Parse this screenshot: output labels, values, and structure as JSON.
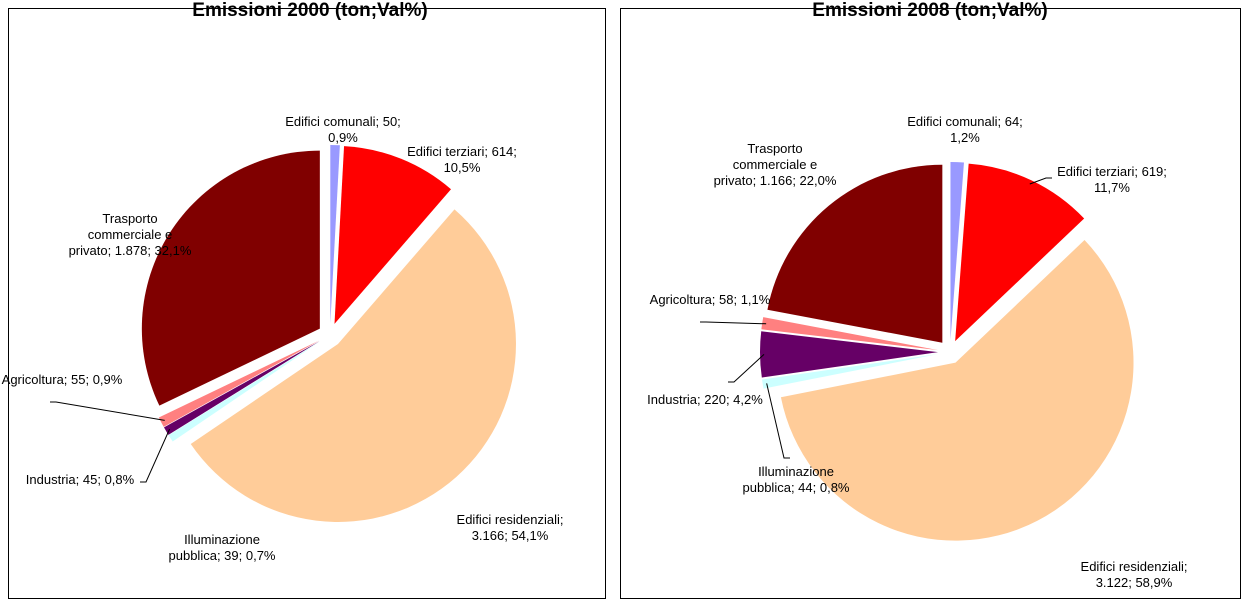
{
  "chart_data": [
    {
      "type": "pie",
      "title": "Emissioni 2000 (ton;Val%)",
      "categories": [
        "Edifici comunali",
        "Edifici terziari",
        "Edifici residenziali",
        "Illuminazione pubblica",
        "Industria",
        "Agricoltura",
        "Trasporto commerciale e privato"
      ],
      "values": [
        50,
        614,
        3166,
        39,
        45,
        55,
        1878
      ],
      "percents": [
        0.9,
        10.5,
        54.1,
        0.7,
        0.8,
        0.9,
        32.1
      ],
      "value_labels": [
        "Edifici comunali; 50; 0,9%",
        "Edifici terziari; 614; 10,5%",
        "Edifici residenziali; 3.166; 54,1%",
        "Illuminazione pubblica; 39; 0,7%",
        "Industria; 45; 0,8%",
        "Agricoltura; 55; 0,9%",
        "Trasporto commerciale e privato; 1.878; 32,1%"
      ],
      "colors": [
        "#9999ff",
        "#ff0000",
        "#ffcc99",
        "#ccffff",
        "#660066",
        "#ff8080",
        "#800000"
      ]
    },
    {
      "type": "pie",
      "title": "Emissioni 2008 (ton;Val%)",
      "categories": [
        "Edifici comunali",
        "Edifici terziari",
        "Edifici residenziali",
        "Illuminazione pubblica",
        "Industria",
        "Agricoltura",
        "Trasporto commerciale e privato"
      ],
      "values": [
        64,
        619,
        3122,
        44,
        220,
        58,
        1166
      ],
      "percents": [
        1.2,
        11.7,
        58.9,
        0.8,
        4.2,
        1.1,
        22.0
      ],
      "value_labels": [
        "Edifici comunali; 64; 1,2%",
        "Edifici terziari; 619; 11,7%",
        "Edifici residenziali; 3.122; 58,9%",
        "Illuminazione pubblica; 44; 0,8%",
        "Industria; 220; 4,2%",
        "Agricoltura; 58; 1,1%",
        "Trasporto commerciale e privato; 1.166; 22,0%"
      ],
      "colors": [
        "#9999ff",
        "#ff0000",
        "#ffcc99",
        "#ccffff",
        "#660066",
        "#ff8080",
        "#800000"
      ]
    }
  ]
}
